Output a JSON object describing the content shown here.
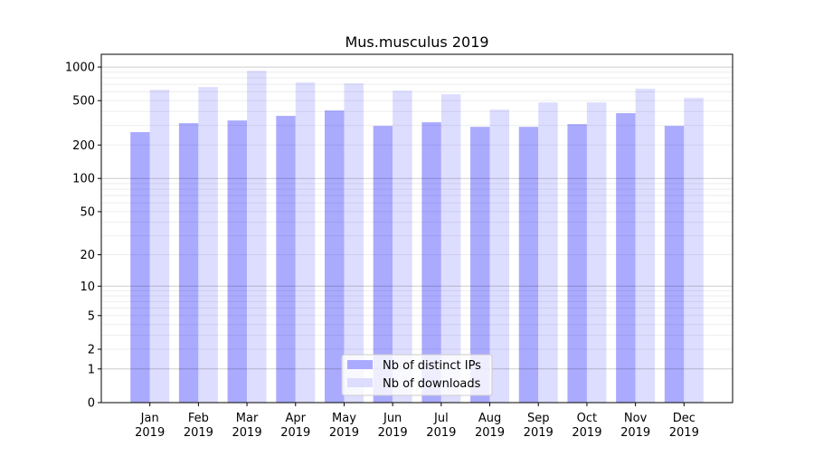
{
  "chart_data": {
    "type": "bar",
    "title": "Mus.musculus 2019",
    "xlabel": "",
    "ylabel": "",
    "y_scale": "log10(1+y)",
    "ylim": [
      0,
      1300
    ],
    "grid": "horizontal major and minor",
    "legend_position": "lower center",
    "categories": [
      "Jan\n2019",
      "Feb\n2019",
      "Mar\n2019",
      "Apr\n2019",
      "May\n2019",
      "Jun\n2019",
      "Jul\n2019",
      "Aug\n2019",
      "Sep\n2019",
      "Oct\n2019",
      "Nov\n2019",
      "Dec\n2019"
    ],
    "y_ticks": [
      0,
      1,
      2,
      5,
      10,
      20,
      50,
      100,
      200,
      500,
      1000
    ],
    "y_tick_labels": [
      "0",
      "1",
      "2",
      "5",
      "10",
      "20",
      "50",
      "100",
      "200",
      "500",
      "1000"
    ],
    "series": [
      {
        "name": "Nb of distinct IPs",
        "color": "#aaaaff",
        "values": [
          261,
          314,
          332,
          365,
          408,
          297,
          320,
          291,
          291,
          308,
          386,
          297
        ]
      },
      {
        "name": "Nb of downloads",
        "color": "#ddddff",
        "values": [
          626,
          662,
          926,
          727,
          713,
          614,
          570,
          415,
          482,
          482,
          638,
          529
        ]
      }
    ]
  }
}
